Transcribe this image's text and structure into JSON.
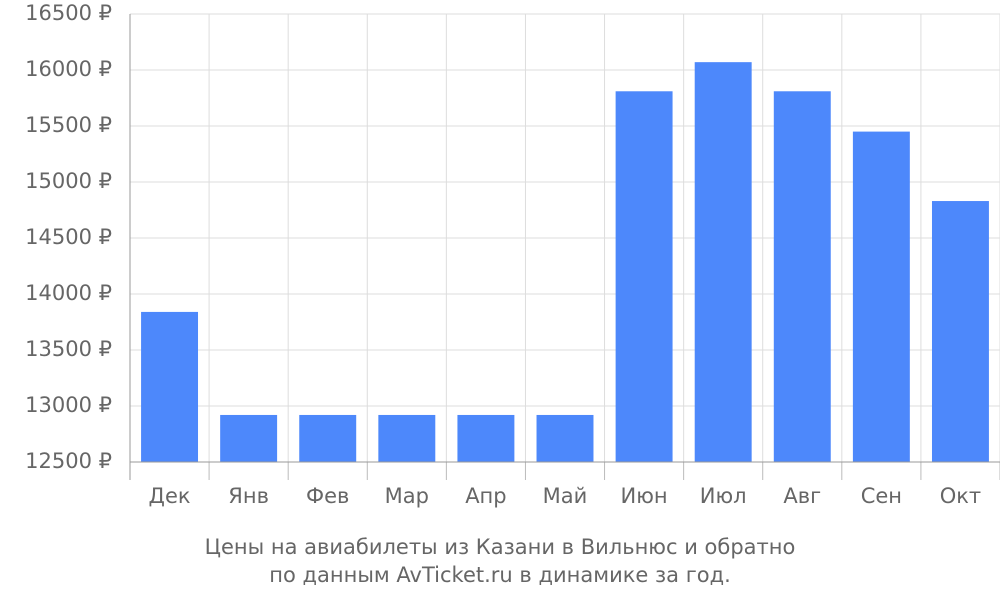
{
  "chart_data": {
    "type": "bar",
    "title": [
      "Цены на авиабилеты из Казани в Вильнюс и обратно",
      "по данным AvTicket.ru в динамике за год."
    ],
    "categories": [
      "Дек",
      "Янв",
      "Фев",
      "Мар",
      "Апр",
      "Май",
      "Июн",
      "Июл",
      "Авг",
      "Сен",
      "Окт"
    ],
    "values": [
      13840,
      12920,
      12920,
      12920,
      12920,
      12920,
      15810,
      16070,
      15810,
      15450,
      14830
    ],
    "color": "#4d88fb",
    "ylim": [
      12500,
      16500
    ],
    "yticks": [
      {
        "value": 12500,
        "label": "12500 ₽"
      },
      {
        "value": 13000,
        "label": "13000 ₽"
      },
      {
        "value": 13500,
        "label": "13500 ₽"
      },
      {
        "value": 14000,
        "label": "14000 ₽"
      },
      {
        "value": 14500,
        "label": "14500 ₽"
      },
      {
        "value": 15000,
        "label": "15000 ₽"
      },
      {
        "value": 15500,
        "label": "15500 ₽"
      },
      {
        "value": 16000,
        "label": "16000 ₽"
      },
      {
        "value": 16500,
        "label": "16500 ₽"
      }
    ],
    "grid": true
  }
}
